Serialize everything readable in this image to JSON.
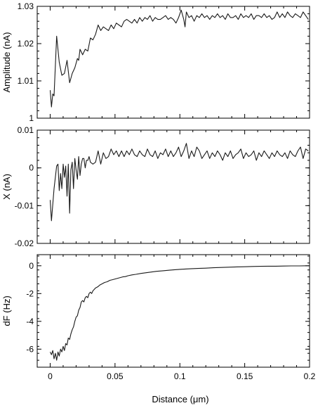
{
  "chart_data": [
    {
      "type": "line",
      "ylabel": "Amplitude (nA)",
      "xlim": [
        -0.01,
        0.2
      ],
      "ylim": [
        1.0,
        1.03
      ],
      "yticks": [
        "1",
        "1.01",
        "1.02",
        "1.03"
      ],
      "ytick_values": [
        1.0,
        1.01,
        1.02,
        1.03
      ],
      "series": [
        {
          "x": [
            0,
            0.001,
            0.002,
            0.003,
            0.005,
            0.007,
            0.009,
            0.011,
            0.013,
            0.015,
            0.017,
            0.019,
            0.021,
            0.022,
            0.023,
            0.025,
            0.027,
            0.029,
            0.031,
            0.033,
            0.035,
            0.037,
            0.039,
            0.041,
            0.043,
            0.045,
            0.047,
            0.049,
            0.051,
            0.053,
            0.055,
            0.057,
            0.059,
            0.061,
            0.063,
            0.065,
            0.067,
            0.069,
            0.071,
            0.073,
            0.075,
            0.077,
            0.079,
            0.081,
            0.083,
            0.085,
            0.087,
            0.089,
            0.091,
            0.093,
            0.095,
            0.097,
            0.099,
            0.101,
            0.103,
            0.104,
            0.105,
            0.107,
            0.109,
            0.111,
            0.113,
            0.115,
            0.117,
            0.119,
            0.121,
            0.123,
            0.125,
            0.127,
            0.129,
            0.131,
            0.133,
            0.135,
            0.137,
            0.139,
            0.141,
            0.143,
            0.145,
            0.147,
            0.149,
            0.151,
            0.153,
            0.155,
            0.157,
            0.159,
            0.161,
            0.163,
            0.165,
            0.167,
            0.169,
            0.171,
            0.173,
            0.175,
            0.177,
            0.179,
            0.181,
            0.183,
            0.185,
            0.187,
            0.189,
            0.191,
            0.193,
            0.195,
            0.197,
            0.199
          ],
          "y": [
            1.0075,
            1.003,
            1.0065,
            1.006,
            1.022,
            1.015,
            1.0115,
            1.012,
            1.0155,
            1.0095,
            1.012,
            1.0135,
            1.016,
            1.0155,
            1.0185,
            1.017,
            1.0185,
            1.018,
            1.0215,
            1.021,
            1.0225,
            1.025,
            1.0235,
            1.0245,
            1.024,
            1.0235,
            1.025,
            1.024,
            1.0255,
            1.025,
            1.0245,
            1.026,
            1.0265,
            1.026,
            1.0255,
            1.0265,
            1.0255,
            1.027,
            1.026,
            1.027,
            1.0265,
            1.0275,
            1.026,
            1.027,
            1.0265,
            1.0265,
            1.027,
            1.0275,
            1.0265,
            1.027,
            1.0265,
            1.0255,
            1.027,
            1.029,
            1.0265,
            1.0245,
            1.0285,
            1.027,
            1.0275,
            1.026,
            1.0275,
            1.027,
            1.028,
            1.027,
            1.0275,
            1.0265,
            1.0275,
            1.027,
            1.028,
            1.027,
            1.0275,
            1.0265,
            1.028,
            1.027,
            1.027,
            1.0275,
            1.0265,
            1.028,
            1.027,
            1.0275,
            1.027,
            1.028,
            1.0265,
            1.0275,
            1.0275,
            1.027,
            1.028,
            1.027,
            1.0275,
            1.0265,
            1.027,
            1.0285,
            1.027,
            1.028,
            1.027,
            1.0285,
            1.0275,
            1.027,
            1.028,
            1.0275,
            1.027,
            1.0285,
            1.0275,
            1.0265
          ]
        }
      ]
    },
    {
      "type": "line",
      "ylabel": "X (nA)",
      "xlim": [
        -0.01,
        0.2
      ],
      "ylim": [
        -0.02,
        0.01
      ],
      "yticks": [
        "0.01",
        "0",
        "-0.01",
        "-0.02"
      ],
      "ytick_values": [
        0.01,
        0.0,
        -0.01,
        -0.02
      ],
      "series": [
        {
          "x": [
            0,
            0.001,
            0.003,
            0.005,
            0.006,
            0.007,
            0.008,
            0.009,
            0.01,
            0.011,
            0.012,
            0.013,
            0.014,
            0.015,
            0.016,
            0.017,
            0.018,
            0.019,
            0.02,
            0.021,
            0.022,
            0.023,
            0.024,
            0.025,
            0.026,
            0.027,
            0.028,
            0.029,
            0.03,
            0.031,
            0.033,
            0.035,
            0.037,
            0.039,
            0.041,
            0.043,
            0.045,
            0.047,
            0.049,
            0.051,
            0.053,
            0.055,
            0.057,
            0.059,
            0.061,
            0.063,
            0.065,
            0.067,
            0.069,
            0.071,
            0.073,
            0.075,
            0.077,
            0.079,
            0.081,
            0.083,
            0.085,
            0.087,
            0.089,
            0.091,
            0.093,
            0.095,
            0.097,
            0.099,
            0.101,
            0.103,
            0.105,
            0.107,
            0.109,
            0.111,
            0.113,
            0.115,
            0.117,
            0.119,
            0.121,
            0.123,
            0.125,
            0.127,
            0.129,
            0.131,
            0.133,
            0.135,
            0.137,
            0.139,
            0.141,
            0.143,
            0.145,
            0.147,
            0.149,
            0.151,
            0.153,
            0.155,
            0.157,
            0.159,
            0.161,
            0.163,
            0.165,
            0.167,
            0.169,
            0.171,
            0.173,
            0.175,
            0.177,
            0.179,
            0.181,
            0.183,
            0.185,
            0.187,
            0.189,
            0.191,
            0.193,
            0.195,
            0.197,
            0.199
          ],
          "y": [
            -0.0085,
            -0.014,
            -0.0055,
            0.0005,
            0.001,
            -0.006,
            -0.0015,
            -0.0055,
            0.001,
            -0.0025,
            0.0005,
            -0.0075,
            0.001,
            -0.012,
            -0.0005,
            0.0015,
            -0.0055,
            0.0025,
            -0.0005,
            -0.003,
            0.003,
            -0.002,
            0.001,
            0.0025,
            0.0025,
            0.0,
            0.002,
            0.002,
            0.003,
            0.0015,
            0.001,
            0.0015,
            0.0045,
            0.001,
            0.004,
            0.0025,
            0.003,
            0.005,
            0.0035,
            0.0045,
            0.003,
            0.0045,
            0.003,
            0.0045,
            0.0035,
            0.005,
            0.0035,
            0.003,
            0.0045,
            0.0035,
            0.003,
            0.005,
            0.0035,
            0.003,
            0.0045,
            0.0025,
            0.004,
            0.0035,
            0.005,
            0.003,
            0.0045,
            0.003,
            0.004,
            0.0055,
            0.003,
            0.0045,
            0.0065,
            0.0025,
            0.0045,
            0.003,
            0.0055,
            0.0045,
            0.0025,
            0.0035,
            0.0045,
            0.0025,
            0.004,
            0.003,
            0.0045,
            0.0035,
            0.002,
            0.004,
            0.003,
            0.0045,
            0.0025,
            0.0035,
            0.004,
            0.005,
            0.0025,
            0.004,
            0.003,
            0.0035,
            0.0045,
            0.002,
            0.004,
            0.003,
            0.0045,
            0.0035,
            0.0025,
            0.004,
            0.003,
            0.0045,
            0.0035,
            0.003,
            0.004,
            0.0025,
            0.0045,
            0.0035,
            0.003,
            0.0045,
            0.0055,
            0.0025,
            0.005,
            0.0045
          ],
          "y_note": ""
        }
      ]
    },
    {
      "type": "line",
      "ylabel": "dF (Hz)",
      "xlabel": "Distance (μm)",
      "xlim": [
        -0.01,
        0.2
      ],
      "ylim": [
        -7.3,
        0.8
      ],
      "xticks": [
        "0",
        "0.05",
        "0.1",
        "0.15",
        "0.2"
      ],
      "xtick_values": [
        0.0,
        0.05,
        0.1,
        0.15,
        0.2
      ],
      "yticks": [
        "0",
        "-2",
        "-4",
        "-6"
      ],
      "ytick_values": [
        0,
        -2,
        -4,
        -6
      ],
      "series": [
        {
          "x": [
            0,
            0.001,
            0.002,
            0.003,
            0.004,
            0.005,
            0.006,
            0.007,
            0.008,
            0.009,
            0.01,
            0.011,
            0.012,
            0.013,
            0.014,
            0.015,
            0.016,
            0.017,
            0.018,
            0.019,
            0.02,
            0.021,
            0.022,
            0.023,
            0.024,
            0.025,
            0.026,
            0.027,
            0.028,
            0.029,
            0.03,
            0.031,
            0.032,
            0.033,
            0.034,
            0.035,
            0.036,
            0.037,
            0.038,
            0.039,
            0.04,
            0.042,
            0.044,
            0.046,
            0.048,
            0.05,
            0.052,
            0.054,
            0.056,
            0.058,
            0.06,
            0.063,
            0.066,
            0.07,
            0.074,
            0.078,
            0.082,
            0.087,
            0.092,
            0.097,
            0.102,
            0.108,
            0.114,
            0.12,
            0.126,
            0.132,
            0.138,
            0.144,
            0.15,
            0.156,
            0.162,
            0.168,
            0.174,
            0.18,
            0.186,
            0.192,
            0.198,
            0.2
          ],
          "y": [
            -6.2,
            -6.4,
            -6.1,
            -6.7,
            -6.3,
            -6.8,
            -6.2,
            -6.5,
            -6.0,
            -6.2,
            -5.8,
            -6.1,
            -5.6,
            -5.7,
            -5.2,
            -5.3,
            -4.9,
            -4.6,
            -4.4,
            -4.0,
            -3.7,
            -3.6,
            -3.2,
            -3.0,
            -2.6,
            -2.5,
            -2.6,
            -2.3,
            -2.2,
            -2.3,
            -2.0,
            -1.9,
            -2.0,
            -1.8,
            -1.7,
            -1.6,
            -1.55,
            -1.5,
            -1.4,
            -1.35,
            -1.3,
            -1.2,
            -1.15,
            -1.05,
            -1.0,
            -0.95,
            -0.9,
            -0.85,
            -0.8,
            -0.78,
            -0.72,
            -0.66,
            -0.62,
            -0.55,
            -0.5,
            -0.45,
            -0.4,
            -0.36,
            -0.32,
            -0.28,
            -0.25,
            -0.22,
            -0.19,
            -0.17,
            -0.14,
            -0.12,
            -0.1,
            -0.08,
            -0.07,
            -0.05,
            -0.04,
            -0.03,
            -0.03,
            -0.02,
            -0.01,
            -0.01,
            0.0,
            0.0
          ]
        }
      ]
    }
  ]
}
